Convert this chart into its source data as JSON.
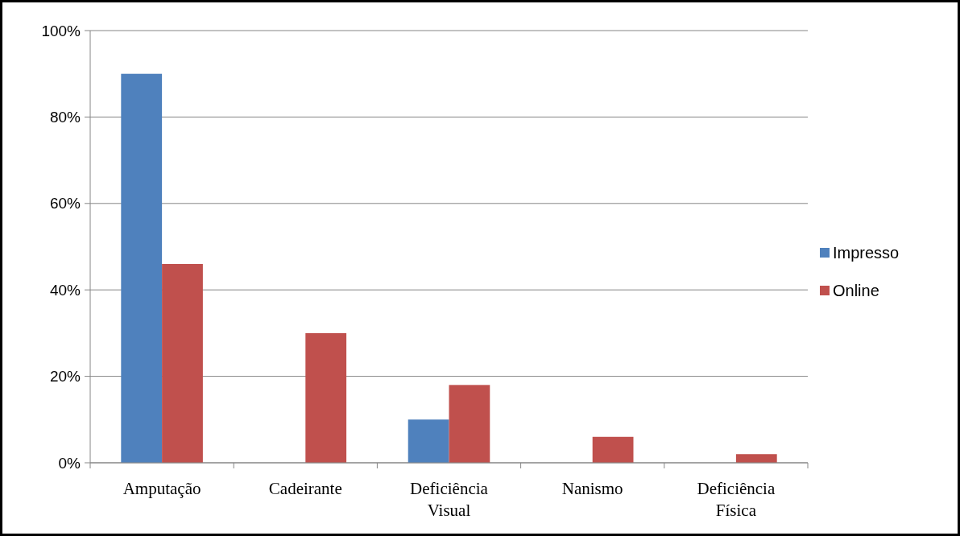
{
  "chart_data": {
    "type": "bar",
    "categories": [
      "Amputação",
      "Cadeirante",
      "Deficiência Visual",
      "Nanismo",
      "Deficiência Física"
    ],
    "series": [
      {
        "name": "Impresso",
        "color": "#4f81bd",
        "values": [
          90,
          0,
          10,
          0,
          0
        ]
      },
      {
        "name": "Online",
        "color": "#c0504d",
        "values": [
          46,
          30,
          18,
          6,
          2
        ]
      }
    ],
    "ylim": [
      0,
      100
    ],
    "yticks": [
      {
        "value": 0,
        "label": "0%"
      },
      {
        "value": 20,
        "label": "20%"
      },
      {
        "value": 40,
        "label": "40%"
      },
      {
        "value": 60,
        "label": "60%"
      },
      {
        "value": 80,
        "label": "80%"
      },
      {
        "value": 100,
        "label": "100%"
      }
    ],
    "grid": "y",
    "legend": "right"
  }
}
